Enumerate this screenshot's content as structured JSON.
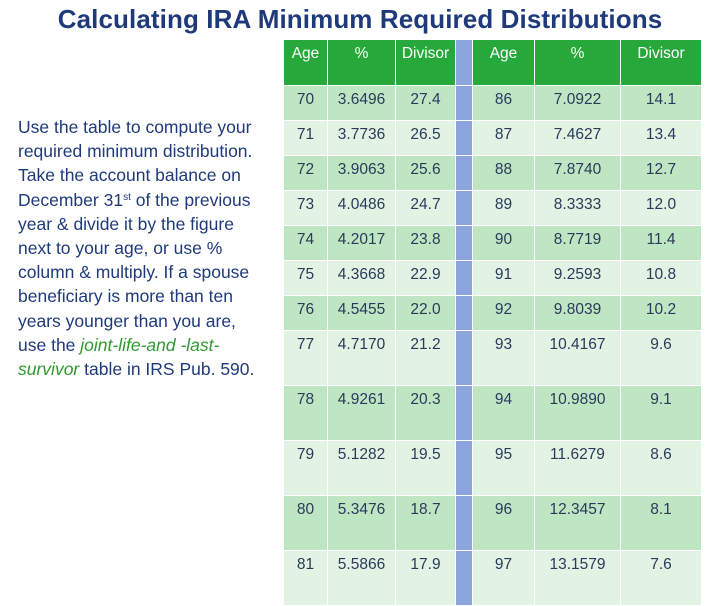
{
  "title": "Calculating IRA Minimum Required Distributions",
  "description": {
    "part1": "Use the table to compute your required minimum distribution.  Take the account balance on December 31",
    "superscript": "st",
    "part2": " of the previous year & divide it by the figure next to your age, or use % column & multiply.  If a spouse beneficiary is more than ten years younger than you are, use the ",
    "highlight": "joint-life-and -last-survivor",
    "part3": " table in IRS Pub. 590."
  },
  "table": {
    "headers": [
      "Age",
      "%",
      "Divisor",
      "Age",
      "%",
      "Divisor"
    ],
    "rows": [
      {
        "left": [
          "70",
          "3.6496",
          "27.4"
        ],
        "right": [
          "86",
          "7.0922",
          "14.1"
        ]
      },
      {
        "left": [
          "71",
          "3.7736",
          "26.5"
        ],
        "right": [
          "87",
          "7.4627",
          "13.4"
        ]
      },
      {
        "left": [
          "72",
          "3.9063",
          "25.6"
        ],
        "right": [
          "88",
          "7.8740",
          "12.7"
        ]
      },
      {
        "left": [
          "73",
          "4.0486",
          "24.7"
        ],
        "right": [
          "89",
          "8.3333",
          "12.0"
        ]
      },
      {
        "left": [
          "74",
          "4.2017",
          "23.8"
        ],
        "right": [
          "90",
          "8.7719",
          "11.4"
        ]
      },
      {
        "left": [
          "75",
          "4.3668",
          "22.9"
        ],
        "right": [
          "91",
          "9.2593",
          "10.8"
        ]
      },
      {
        "left": [
          "76",
          "4.5455",
          "22.0"
        ],
        "right": [
          "92",
          "9.8039",
          "10.2"
        ]
      },
      {
        "left": [
          "77",
          "4.7170",
          "21.2"
        ],
        "right": [
          "93",
          "10.4167",
          "9.6"
        ]
      },
      {
        "left": [
          "78",
          "4.9261",
          "20.3"
        ],
        "right": [
          "94",
          "10.9890",
          "9.1"
        ]
      },
      {
        "left": [
          "79",
          "5.1282",
          "19.5"
        ],
        "right": [
          "95",
          "11.6279",
          "8.6"
        ]
      },
      {
        "left": [
          "80",
          "5.3476",
          "18.7"
        ],
        "right": [
          "96",
          "12.3457",
          "8.1"
        ]
      },
      {
        "left": [
          "81",
          "5.5866",
          "17.9"
        ],
        "right": [
          "97",
          "13.1579",
          "7.6"
        ]
      }
    ]
  },
  "colors": {
    "title": "#1f3a7a",
    "header_green": "#27a83a",
    "row_dark": "#bfe6c3",
    "row_light": "#e2f3e4",
    "separator": "#8aa6dc",
    "highlight": "#2f9a2f"
  }
}
